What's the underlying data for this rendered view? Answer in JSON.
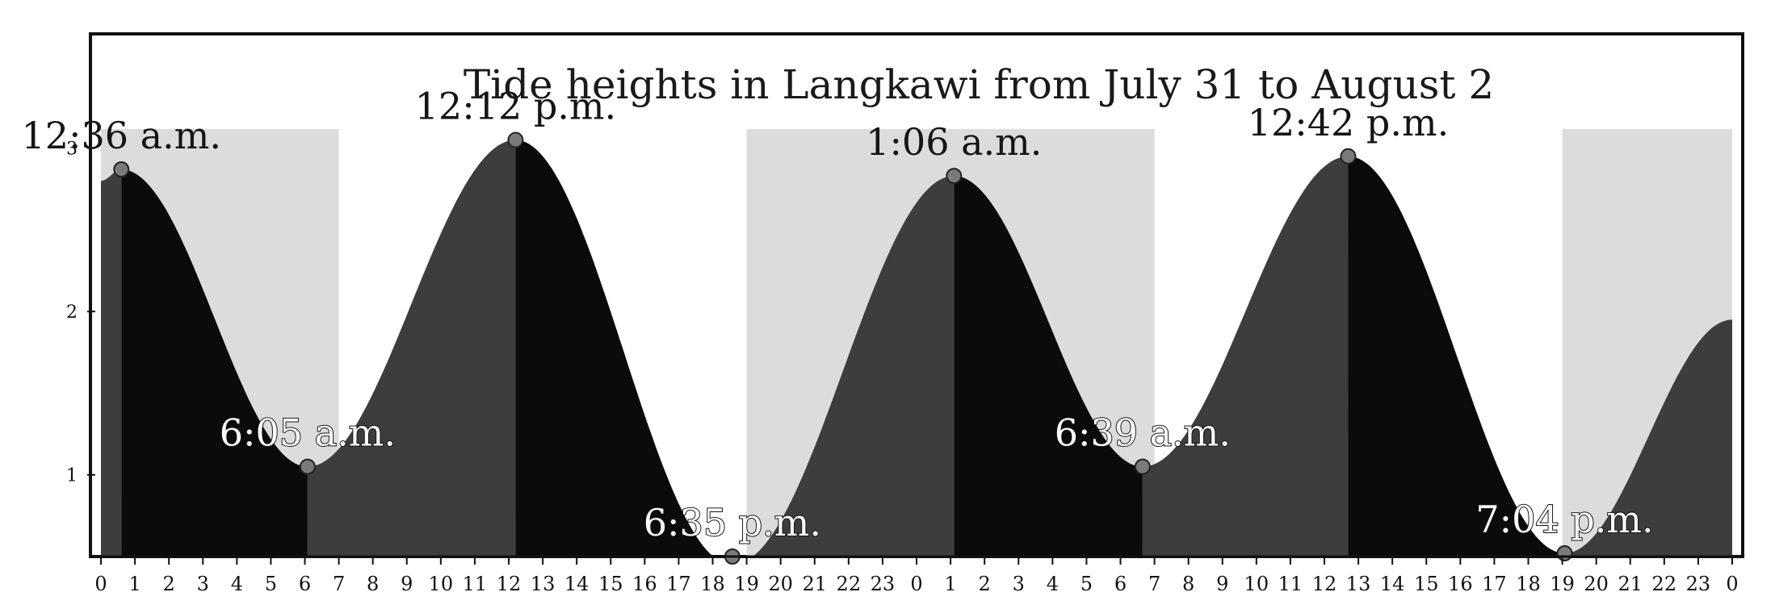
{
  "chart_data": {
    "type": "area",
    "title": "Tide heights in Langkawi from July 31 to August 2",
    "xlabel": "",
    "ylabel": "",
    "ylim": [
      0.5,
      3.5
    ],
    "xlim": [
      0,
      48
    ],
    "y_ticks": [
      1,
      2,
      3
    ],
    "x_tick_labels": [
      "0",
      "1",
      "2",
      "3",
      "4",
      "5",
      "6",
      "7",
      "8",
      "9",
      "10",
      "11",
      "12",
      "13",
      "14",
      "15",
      "16",
      "17",
      "18",
      "19",
      "20",
      "21",
      "22",
      "23",
      "0",
      "1",
      "2",
      "3",
      "4",
      "5",
      "6",
      "7",
      "8",
      "9",
      "10",
      "11",
      "12",
      "13",
      "14",
      "15",
      "16",
      "17",
      "18",
      "19",
      "20",
      "21",
      "22",
      "23",
      "0"
    ],
    "grid": false,
    "series": [
      {
        "points": [
          {
            "x": 0.6,
            "y": 2.87,
            "label": "12:36 a.m."
          },
          {
            "x": 6.08,
            "y": 1.05,
            "label": "6:05 a.m."
          },
          {
            "x": 12.2,
            "y": 3.05,
            "label": "12:12 p.m."
          },
          {
            "x": 18.58,
            "y": 0.45,
            "label": "6:35 p.m."
          },
          {
            "x": 25.1,
            "y": 2.83,
            "label": "1:06 a.m."
          },
          {
            "x": 30.65,
            "y": 1.05,
            "label": "6:39 a.m."
          },
          {
            "x": 36.7,
            "y": 2.95,
            "label": "12:42 p.m."
          },
          {
            "x": 43.07,
            "y": 0.52,
            "label": "7:04 p.m."
          }
        ],
        "start": {
          "x": 0,
          "y": 2.8
        },
        "end": {
          "x": 48,
          "y": 1.95
        }
      }
    ],
    "night_bands": [
      [
        0,
        7
      ],
      [
        19,
        31
      ],
      [
        43,
        48
      ]
    ],
    "colors": {
      "fill_dark": "#0b0b0b",
      "fill_grey": "#3d3d3d",
      "night": "#dcdcdc",
      "point": "#7a7a7a"
    }
  }
}
